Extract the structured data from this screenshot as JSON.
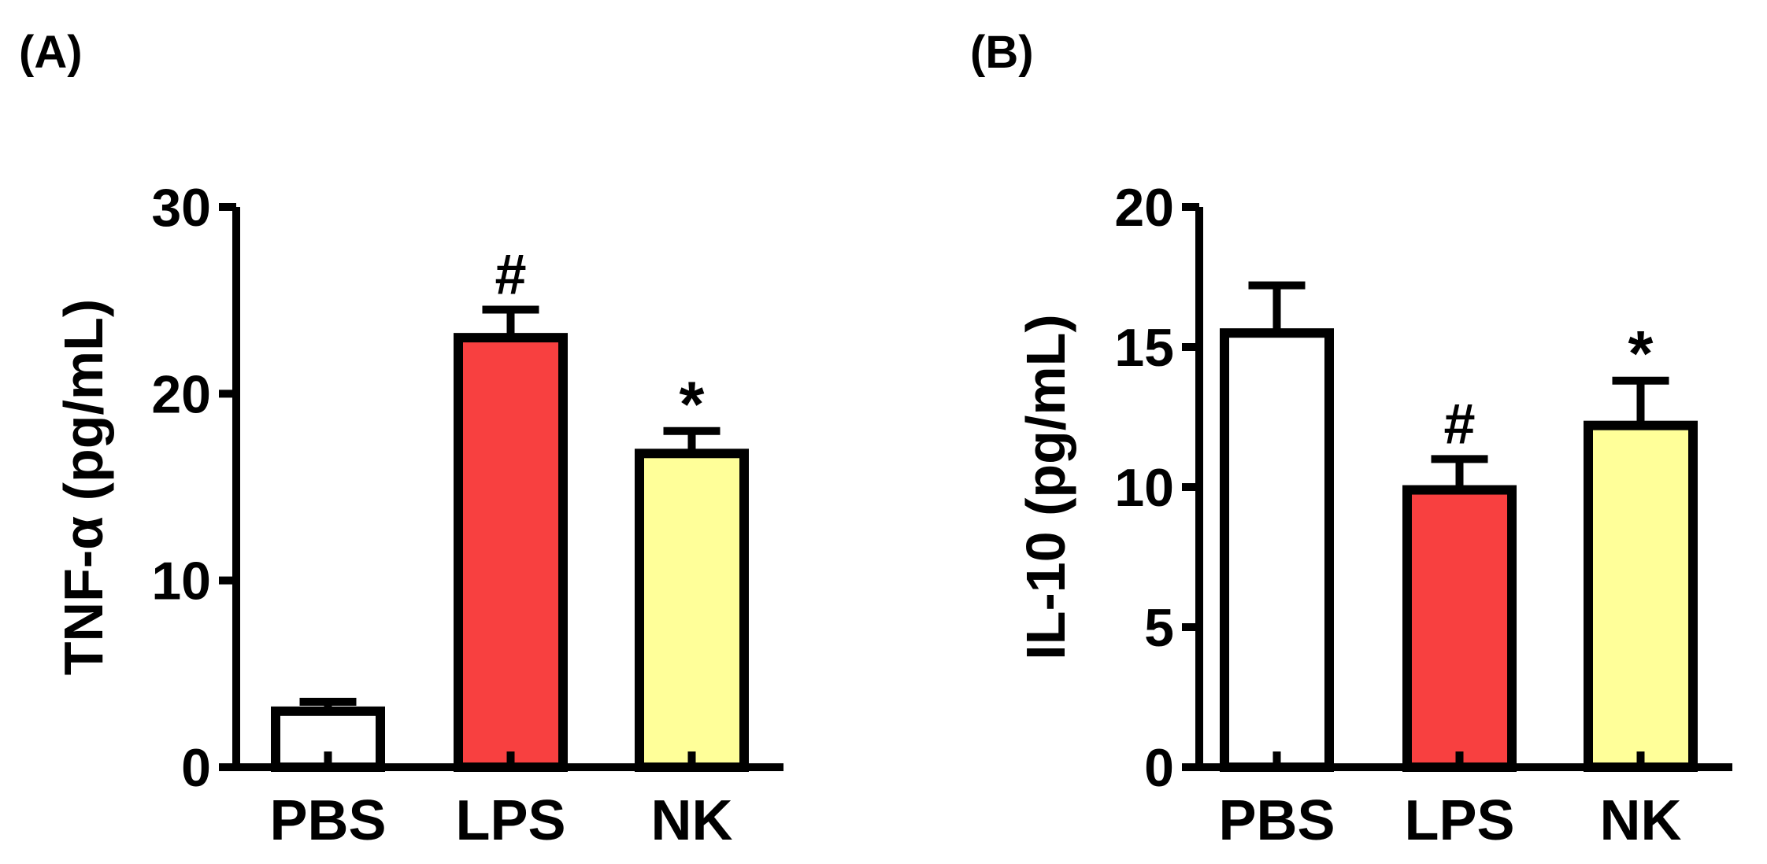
{
  "panels": [
    {
      "label": "(A)"
    },
    {
      "label": "(B)"
    }
  ],
  "colors": {
    "PBS": "#ffffff",
    "LPS": "#f84040",
    "NK": "#ffff99",
    "stroke": "#000000"
  },
  "chart_data": [
    {
      "type": "bar",
      "title": "",
      "xlabel": "",
      "ylabel": "TNF-α (pg/mL)",
      "ylim": [
        0,
        30
      ],
      "yticks": [
        0,
        10,
        20,
        30
      ],
      "ytick_labels": [
        "0",
        "10",
        "20",
        "30"
      ],
      "grid": false,
      "legend": "none",
      "categories": [
        "PBS",
        "LPS",
        "NK"
      ],
      "values": [
        3.0,
        23.0,
        16.8
      ],
      "errors": [
        0.5,
        1.5,
        1.2
      ],
      "annotations": [
        "",
        "#",
        "*"
      ]
    },
    {
      "type": "bar",
      "title": "",
      "xlabel": "",
      "ylabel": "IL-10 (pg/mL)",
      "ylim": [
        0,
        20
      ],
      "yticks": [
        0,
        5,
        10,
        15,
        20
      ],
      "ytick_labels": [
        "0",
        "5",
        "10",
        "15",
        "20"
      ],
      "grid": false,
      "legend": "none",
      "categories": [
        "PBS",
        "LPS",
        "NK"
      ],
      "values": [
        15.5,
        9.9,
        12.2
      ],
      "errors": [
        1.7,
        1.1,
        1.6
      ],
      "annotations": [
        "",
        "#",
        "*"
      ]
    }
  ]
}
